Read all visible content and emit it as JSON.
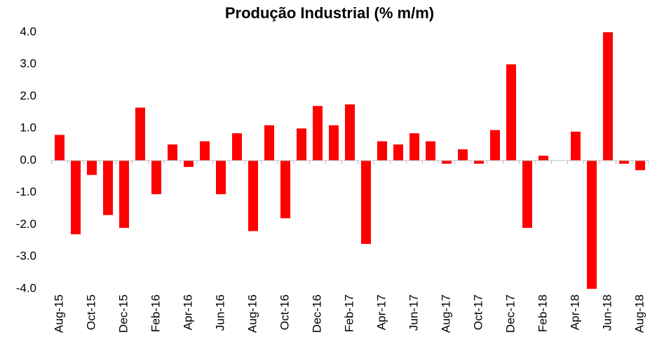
{
  "chart_data": {
    "type": "bar",
    "title": "Produção Industrial (% m/m)",
    "categories": [
      "Aug-15",
      null,
      "Oct-15",
      null,
      "Dec-15",
      null,
      "Feb-16",
      null,
      "Apr-16",
      null,
      "Jun-16",
      null,
      "Aug-16",
      null,
      "Oct-16",
      null,
      "Dec-16",
      null,
      "Feb-17",
      null,
      "Apr-17",
      null,
      "Jun-17",
      null,
      "Aug-17",
      null,
      "Oct-17",
      null,
      "Dec-17",
      null,
      "Feb-18",
      null,
      "Apr-18",
      null,
      "Jun-18",
      null,
      "Aug-18"
    ],
    "values": [
      0.8,
      -2.3,
      -0.45,
      -1.7,
      -2.1,
      1.65,
      -1.05,
      0.5,
      -0.2,
      0.6,
      -1.05,
      0.85,
      -2.2,
      1.1,
      -1.8,
      1.0,
      1.7,
      1.1,
      1.75,
      -2.6,
      0.6,
      0.5,
      0.85,
      0.6,
      -0.1,
      0.35,
      -0.1,
      0.95,
      3.0,
      -2.1,
      0.15,
      0,
      0.9,
      -4.0,
      4.0,
      -0.1,
      -0.3
    ],
    "color": "#ff0000",
    "ylim": [
      -4,
      4
    ],
    "yticks": [
      {
        "value": -4,
        "label": "-4.0"
      },
      {
        "value": -3,
        "label": "-3.0"
      },
      {
        "value": -2,
        "label": "-2.0"
      },
      {
        "value": -1,
        "label": "-1.0"
      },
      {
        "value": 0,
        "label": "0.0"
      },
      {
        "value": 1,
        "label": "1.0"
      },
      {
        "value": 2,
        "label": "2.0"
      },
      {
        "value": 3,
        "label": "3.0"
      },
      {
        "value": 4,
        "label": "4.0"
      }
    ]
  }
}
